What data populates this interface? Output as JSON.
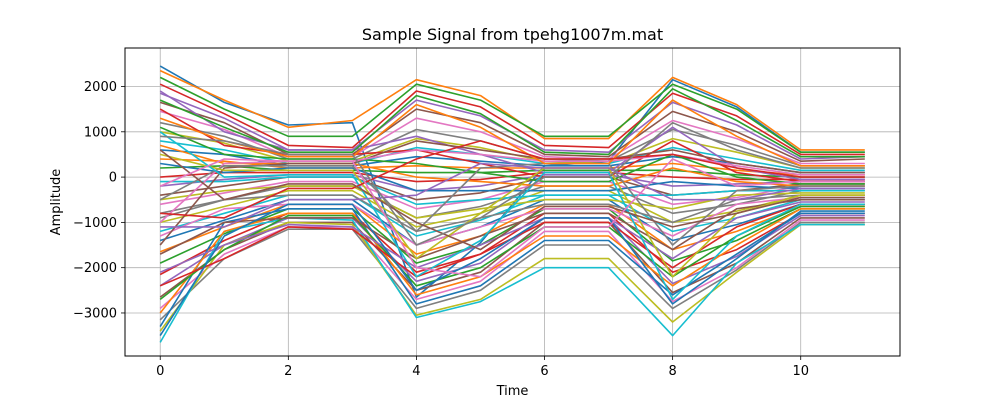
{
  "chart_data": {
    "type": "line",
    "title": "Sample Signal from tpehg1007m.mat",
    "xlabel": "Time",
    "ylabel": "Amplitude",
    "xlim": [
      -0.55,
      11.55
    ],
    "ylim": [
      -3950,
      2850
    ],
    "x": [
      0,
      1,
      2,
      3,
      4,
      5,
      6,
      7,
      8,
      9,
      10,
      11
    ],
    "x_ticks": [
      0,
      2,
      4,
      6,
      8,
      10
    ],
    "y_ticks": [
      -3000,
      -2000,
      -1000,
      0,
      1000,
      2000
    ],
    "x_tick_labels": [
      "0",
      "2",
      "4",
      "6",
      "8",
      "10"
    ],
    "y_tick_labels": [
      "−3000",
      "−2000",
      "−1000",
      "0",
      "1000",
      "2000"
    ],
    "grid": true,
    "legend": "none",
    "colors": [
      "#1f77b4",
      "#ff7f0e",
      "#2ca02c",
      "#d62728",
      "#9467bd",
      "#8c564b",
      "#e377c2",
      "#7f7f7f",
      "#bcbd22",
      "#17becf"
    ],
    "series": [
      {
        "values": [
          2450,
          1650,
          1150,
          1200,
          -2650,
          -1450,
          250,
          350,
          2150,
          1550,
          550,
          550
        ]
      },
      {
        "values": [
          2350,
          1700,
          1100,
          1250,
          2150,
          1800,
          850,
          850,
          2200,
          1600,
          600,
          600
        ]
      },
      {
        "values": [
          2200,
          1500,
          900,
          900,
          2050,
          1700,
          900,
          900,
          2050,
          1500,
          550,
          550
        ]
      },
      {
        "values": [
          2050,
          1400,
          700,
          650,
          1900,
          1550,
          700,
          650,
          1850,
          1350,
          500,
          500
        ]
      },
      {
        "values": [
          1850,
          1300,
          600,
          600,
          1700,
          1350,
          600,
          550,
          1650,
          1150,
          400,
          450
        ]
      },
      {
        "values": [
          1650,
          1200,
          500,
          500,
          1500,
          1200,
          500,
          450,
          1450,
          1000,
          350,
          400
        ]
      },
      {
        "values": [
          1450,
          1050,
          450,
          450,
          1300,
          1000,
          450,
          400,
          1250,
          850,
          300,
          300
        ]
      },
      {
        "values": [
          1200,
          900,
          400,
          400,
          1050,
          800,
          400,
          350,
          1050,
          700,
          250,
          250
        ]
      },
      {
        "values": [
          1000,
          750,
          350,
          350,
          850,
          650,
          350,
          300,
          850,
          550,
          200,
          200
        ]
      },
      {
        "values": [
          800,
          600,
          300,
          300,
          650,
          500,
          300,
          300,
          650,
          400,
          150,
          150
        ]
      },
      {
        "values": [
          600,
          500,
          250,
          250,
          450,
          350,
          250,
          250,
          450,
          300,
          100,
          100
        ]
      },
      {
        "values": [
          400,
          350,
          200,
          200,
          250,
          200,
          200,
          200,
          300,
          150,
          50,
          50
        ]
      },
      {
        "values": [
          200,
          250,
          150,
          150,
          100,
          100,
          150,
          150,
          150,
          50,
          0,
          0
        ]
      },
      {
        "values": [
          0,
          100,
          100,
          100,
          -100,
          -50,
          100,
          100,
          0,
          -50,
          -50,
          -50
        ]
      },
      {
        "values": [
          -200,
          -50,
          50,
          50,
          -300,
          -200,
          50,
          50,
          -200,
          -150,
          -100,
          -100
        ]
      },
      {
        "values": [
          -400,
          -200,
          0,
          0,
          -500,
          -350,
          0,
          0,
          -400,
          -300,
          -150,
          -150
        ]
      },
      {
        "values": [
          -600,
          -350,
          -100,
          -100,
          -700,
          -500,
          -100,
          -100,
          -600,
          -450,
          -200,
          -200
        ]
      },
      {
        "values": [
          -800,
          -500,
          -200,
          -200,
          -900,
          -650,
          -200,
          -200,
          -800,
          -600,
          -300,
          -300
        ]
      },
      {
        "values": [
          -1000,
          -650,
          -300,
          -300,
          -1100,
          -800,
          -300,
          -300,
          -1000,
          -750,
          -400,
          -400
        ]
      },
      {
        "values": [
          -1200,
          -800,
          -400,
          -400,
          -1300,
          -950,
          -400,
          -400,
          -1200,
          -900,
          -500,
          -500
        ]
      },
      {
        "values": [
          -1400,
          -950,
          -500,
          -500,
          -1500,
          -1100,
          -500,
          -500,
          -1400,
          -1050,
          -600,
          -600
        ]
      },
      {
        "values": [
          -1650,
          -1100,
          -600,
          -600,
          -1700,
          -1300,
          -600,
          -600,
          -1600,
          -1200,
          -650,
          -650
        ]
      },
      {
        "values": [
          -1900,
          -1250,
          -700,
          -700,
          -1900,
          -1500,
          -700,
          -700,
          -1850,
          -1400,
          -700,
          -700
        ]
      },
      {
        "values": [
          -2150,
          -1400,
          -800,
          -800,
          -2100,
          -1700,
          -800,
          -800,
          -2100,
          -1600,
          -800,
          -800
        ]
      },
      {
        "values": [
          -2400,
          -1500,
          -900,
          -900,
          -2300,
          -1900,
          -900,
          -900,
          -2350,
          -1750,
          -850,
          -850
        ]
      },
      {
        "values": [
          -2650,
          -1600,
          -1000,
          -1000,
          -2500,
          -2100,
          -1000,
          -1000,
          -2550,
          -1900,
          -900,
          -900
        ]
      },
      {
        "values": [
          -2900,
          -1700,
          -1100,
          -1100,
          -2700,
          -2300,
          -1200,
          -1200,
          -2750,
          -2000,
          -950,
          -950
        ]
      },
      {
        "values": [
          -3150,
          -1800,
          -1150,
          -1150,
          -2900,
          -2500,
          -1500,
          -1500,
          -2900,
          -2050,
          -1000,
          -1000
        ]
      },
      {
        "values": [
          -3400,
          -1500,
          -1000,
          -1050,
          -3050,
          -2700,
          -1800,
          -1800,
          -3200,
          -2100,
          -1050,
          -1050
        ]
      },
      {
        "values": [
          -3650,
          -1200,
          -900,
          -950,
          -3100,
          -2750,
          -2000,
          -2000,
          -3500,
          -1900,
          -1050,
          -1050
        ]
      },
      {
        "values": [
          -3300,
          -1000,
          -700,
          -700,
          -2800,
          -2400,
          -1400,
          -1400,
          -2600,
          -1700,
          -800,
          -800
        ]
      },
      {
        "values": [
          -3000,
          -1200,
          -800,
          -800,
          -2600,
          -2200,
          -1300,
          -1300,
          -2400,
          -1500,
          -700,
          -700
        ]
      },
      {
        "values": [
          -2700,
          -1600,
          -850,
          -850,
          -2400,
          -2000,
          -1100,
          -1100,
          -2200,
          -1300,
          -650,
          -650
        ]
      },
      {
        "values": [
          -2400,
          -1800,
          -1100,
          -1150,
          -2200,
          -1700,
          -1000,
          -1000,
          -2000,
          -1100,
          -600,
          -600
        ]
      },
      {
        "values": [
          -2100,
          -1500,
          -1050,
          -1100,
          -2000,
          -1500,
          -900,
          -900,
          -1800,
          -900,
          -550,
          -550
        ]
      },
      {
        "values": [
          -1700,
          -1000,
          -900,
          -900,
          -1800,
          -1300,
          -800,
          -800,
          -1600,
          -700,
          -500,
          -500
        ]
      },
      {
        "values": [
          -1300,
          -700,
          -600,
          -600,
          -1500,
          -1100,
          -700,
          -700,
          -1300,
          -600,
          -450,
          -450
        ]
      },
      {
        "values": [
          -900,
          -500,
          -400,
          -400,
          -1200,
          -900,
          -600,
          -600,
          -1000,
          -500,
          -400,
          -400
        ]
      },
      {
        "values": [
          -500,
          -300,
          -200,
          -200,
          -900,
          -700,
          -500,
          -500,
          -700,
          -400,
          -350,
          -350
        ]
      },
      {
        "values": [
          -100,
          -100,
          0,
          0,
          -600,
          -500,
          -400,
          -400,
          -400,
          -300,
          -300,
          -300
        ]
      },
      {
        "values": [
          300,
          100,
          200,
          200,
          -300,
          -300,
          -300,
          -300,
          -100,
          -200,
          -250,
          -250
        ]
      },
      {
        "values": [
          700,
          300,
          300,
          300,
          0,
          -100,
          -200,
          -200,
          200,
          -100,
          -200,
          -200
        ]
      },
      {
        "values": [
          1100,
          500,
          400,
          400,
          300,
          100,
          -100,
          -100,
          500,
          0,
          -150,
          -150
        ]
      },
      {
        "values": [
          1500,
          700,
          500,
          500,
          600,
          300,
          0,
          0,
          800,
          100,
          -100,
          -100
        ]
      },
      {
        "values": [
          1900,
          1000,
          600,
          600,
          900,
          500,
          100,
          100,
          1100,
          200,
          -50,
          -50
        ]
      },
      {
        "values": [
          -1500,
          200,
          300,
          300,
          800,
          600,
          400,
          400,
          600,
          300,
          100,
          100
        ]
      },
      {
        "values": [
          -1000,
          300,
          350,
          350,
          600,
          500,
          350,
          350,
          500,
          250,
          50,
          50
        ]
      },
      {
        "values": [
          -500,
          250,
          250,
          250,
          -1200,
          200,
          300,
          300,
          -1500,
          -300,
          -200,
          -200
        ]
      },
      {
        "values": [
          500,
          150,
          150,
          150,
          -1800,
          -800,
          200,
          200,
          -2200,
          -800,
          -400,
          -400
        ]
      },
      {
        "values": [
          1000,
          0,
          50,
          50,
          -2200,
          -1400,
          100,
          100,
          -2700,
          -1300,
          -600,
          -600
        ]
      },
      {
        "values": [
          -3500,
          -1300,
          -600,
          -600,
          -2500,
          -1800,
          -900,
          -900,
          -2800,
          -1800,
          -750,
          -750
        ]
      },
      {
        "values": [
          1300,
          800,
          450,
          450,
          1600,
          1100,
          300,
          300,
          1700,
          900,
          250,
          250
        ]
      },
      {
        "values": [
          1700,
          1100,
          550,
          550,
          1800,
          1400,
          550,
          500,
          1950,
          1250,
          450,
          450
        ]
      },
      {
        "values": [
          -800,
          -900,
          -250,
          -250,
          400,
          800,
          400,
          400,
          500,
          200,
          0,
          0
        ]
      },
      {
        "values": [
          -1100,
          -1100,
          -500,
          -500,
          -400,
          300,
          200,
          200,
          -500,
          -500,
          -250,
          -250
        ]
      },
      {
        "values": [
          600,
          -500,
          -150,
          -150,
          -1000,
          -1600,
          -650,
          -650,
          -1100,
          -800,
          -450,
          -450
        ]
      },
      {
        "values": [
          -200,
          400,
          350,
          350,
          -2000,
          -2200,
          -1100,
          -1100,
          400,
          -200,
          -100,
          -100
        ]
      },
      {
        "values": [
          900,
          800,
          500,
          500,
          -1500,
          -900,
          0,
          0,
          1200,
          600,
          200,
          200
        ]
      }
    ]
  }
}
